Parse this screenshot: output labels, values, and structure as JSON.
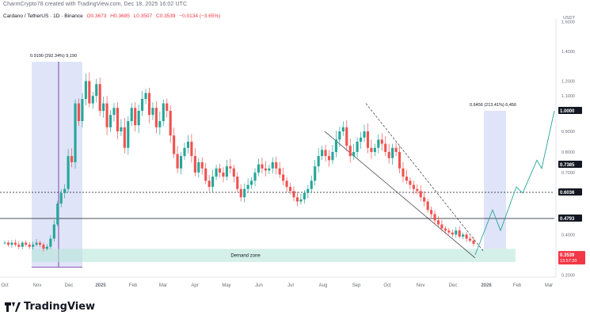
{
  "header": {
    "publish_info": "CharmCrypto78 created with TradingView.com, Dec 18, 2025 16:02 UTC"
  },
  "legend": {
    "symbol": "Cardano / TetherUS · 1D · Binance",
    "open": "O0.3673",
    "high": "H0.3685",
    "low": "L0.3507",
    "close": "C0.3539",
    "change": "−0.0134 (−3.65%)"
  },
  "colors": {
    "up": "#26a69a",
    "down": "#ef5350",
    "range_box": "#b8c3f0",
    "demand_zone": "#b9e6d8",
    "projection": "#26a69a",
    "channel": "#131722",
    "current_price_badge": "#f23645"
  },
  "chart_data": {
    "type": "candlestick",
    "title": "Cardano / TetherUS · 1D · Binance",
    "ylabel": "USDT",
    "x_ticks": [
      "Oct",
      "Nov",
      "Dec",
      "2025",
      "Feb",
      "Mar",
      "Apr",
      "May",
      "Jun",
      "Jul",
      "Aug",
      "Sep",
      "Oct",
      "Nov",
      "Dec",
      "2026",
      "Feb",
      "Mar"
    ],
    "y_axis_top_label": "USDT",
    "y_ticks": [
      "1.6000",
      "1.4000",
      "1.2000",
      "1.1000",
      "0.9000",
      "0.8000",
      "0.7000",
      "0.4000",
      "0.3000",
      "0.2000"
    ],
    "price_labels": [
      {
        "label": "1.0000",
        "value": 1.0
      },
      {
        "label": "0.7385",
        "value": 0.7385
      },
      {
        "label": "0.6036",
        "value": 0.6036
      },
      {
        "label": "0.4793",
        "value": 0.4793
      }
    ],
    "current_price": {
      "label": "0.3539",
      "value": 0.3539,
      "countdown": "13:57:20"
    },
    "horizontal_lines": [
      {
        "value": 0.6036,
        "style": "dotted"
      },
      {
        "value": 0.4793,
        "style": "solid"
      }
    ],
    "annotations": [
      {
        "text": "0.9190 (292.34%) 9,190",
        "range_low": 0.24,
        "range_high": 1.33,
        "period": "Nov 2024 - Dec 2024"
      },
      {
        "text": "0.6456 (213.41%) 6,456",
        "range_low": 0.33,
        "range_high": 1.0,
        "period": "Dec 2025 - Jan 2026"
      }
    ],
    "zones": [
      {
        "label": "Demand zone",
        "low": 0.265,
        "high": 0.33
      }
    ],
    "closes": [
      0.36,
      0.35,
      0.36,
      0.35,
      0.34,
      0.36,
      0.35,
      0.34,
      0.35,
      0.36,
      0.35,
      0.33,
      0.34,
      0.38,
      0.45,
      0.55,
      0.6,
      0.62,
      0.78,
      0.75,
      1.05,
      0.95,
      1.08,
      1.2,
      1.05,
      1.1,
      1.18,
      1.0,
      1.05,
      0.92,
      0.98,
      1.02,
      0.9,
      0.92,
      0.82,
      0.95,
      1.02,
      0.93,
      1.0,
      1.08,
      1.12,
      0.98,
      1.02,
      0.92,
      0.95,
      1.05,
      1.0,
      0.88,
      0.79,
      0.72,
      0.78,
      0.82,
      0.85,
      0.78,
      0.7,
      0.75,
      0.72,
      0.66,
      0.63,
      0.68,
      0.72,
      0.7,
      0.68,
      0.73,
      0.72,
      0.68,
      0.62,
      0.58,
      0.62,
      0.64,
      0.66,
      0.7,
      0.74,
      0.72,
      0.71,
      0.72,
      0.75,
      0.72,
      0.69,
      0.66,
      0.63,
      0.61,
      0.58,
      0.56,
      0.57,
      0.6,
      0.62,
      0.66,
      0.73,
      0.78,
      0.81,
      0.78,
      0.76,
      0.8,
      0.86,
      0.9,
      0.92,
      0.83,
      0.78,
      0.8,
      0.85,
      0.87,
      0.9,
      0.82,
      0.8,
      0.82,
      0.86,
      0.84,
      0.8,
      0.77,
      0.82,
      0.8,
      0.72,
      0.68,
      0.66,
      0.64,
      0.62,
      0.61,
      0.58,
      0.56,
      0.52,
      0.5,
      0.47,
      0.45,
      0.43,
      0.42,
      0.41,
      0.4,
      0.42,
      0.39,
      0.4,
      0.38,
      0.37,
      0.355
    ]
  }
}
